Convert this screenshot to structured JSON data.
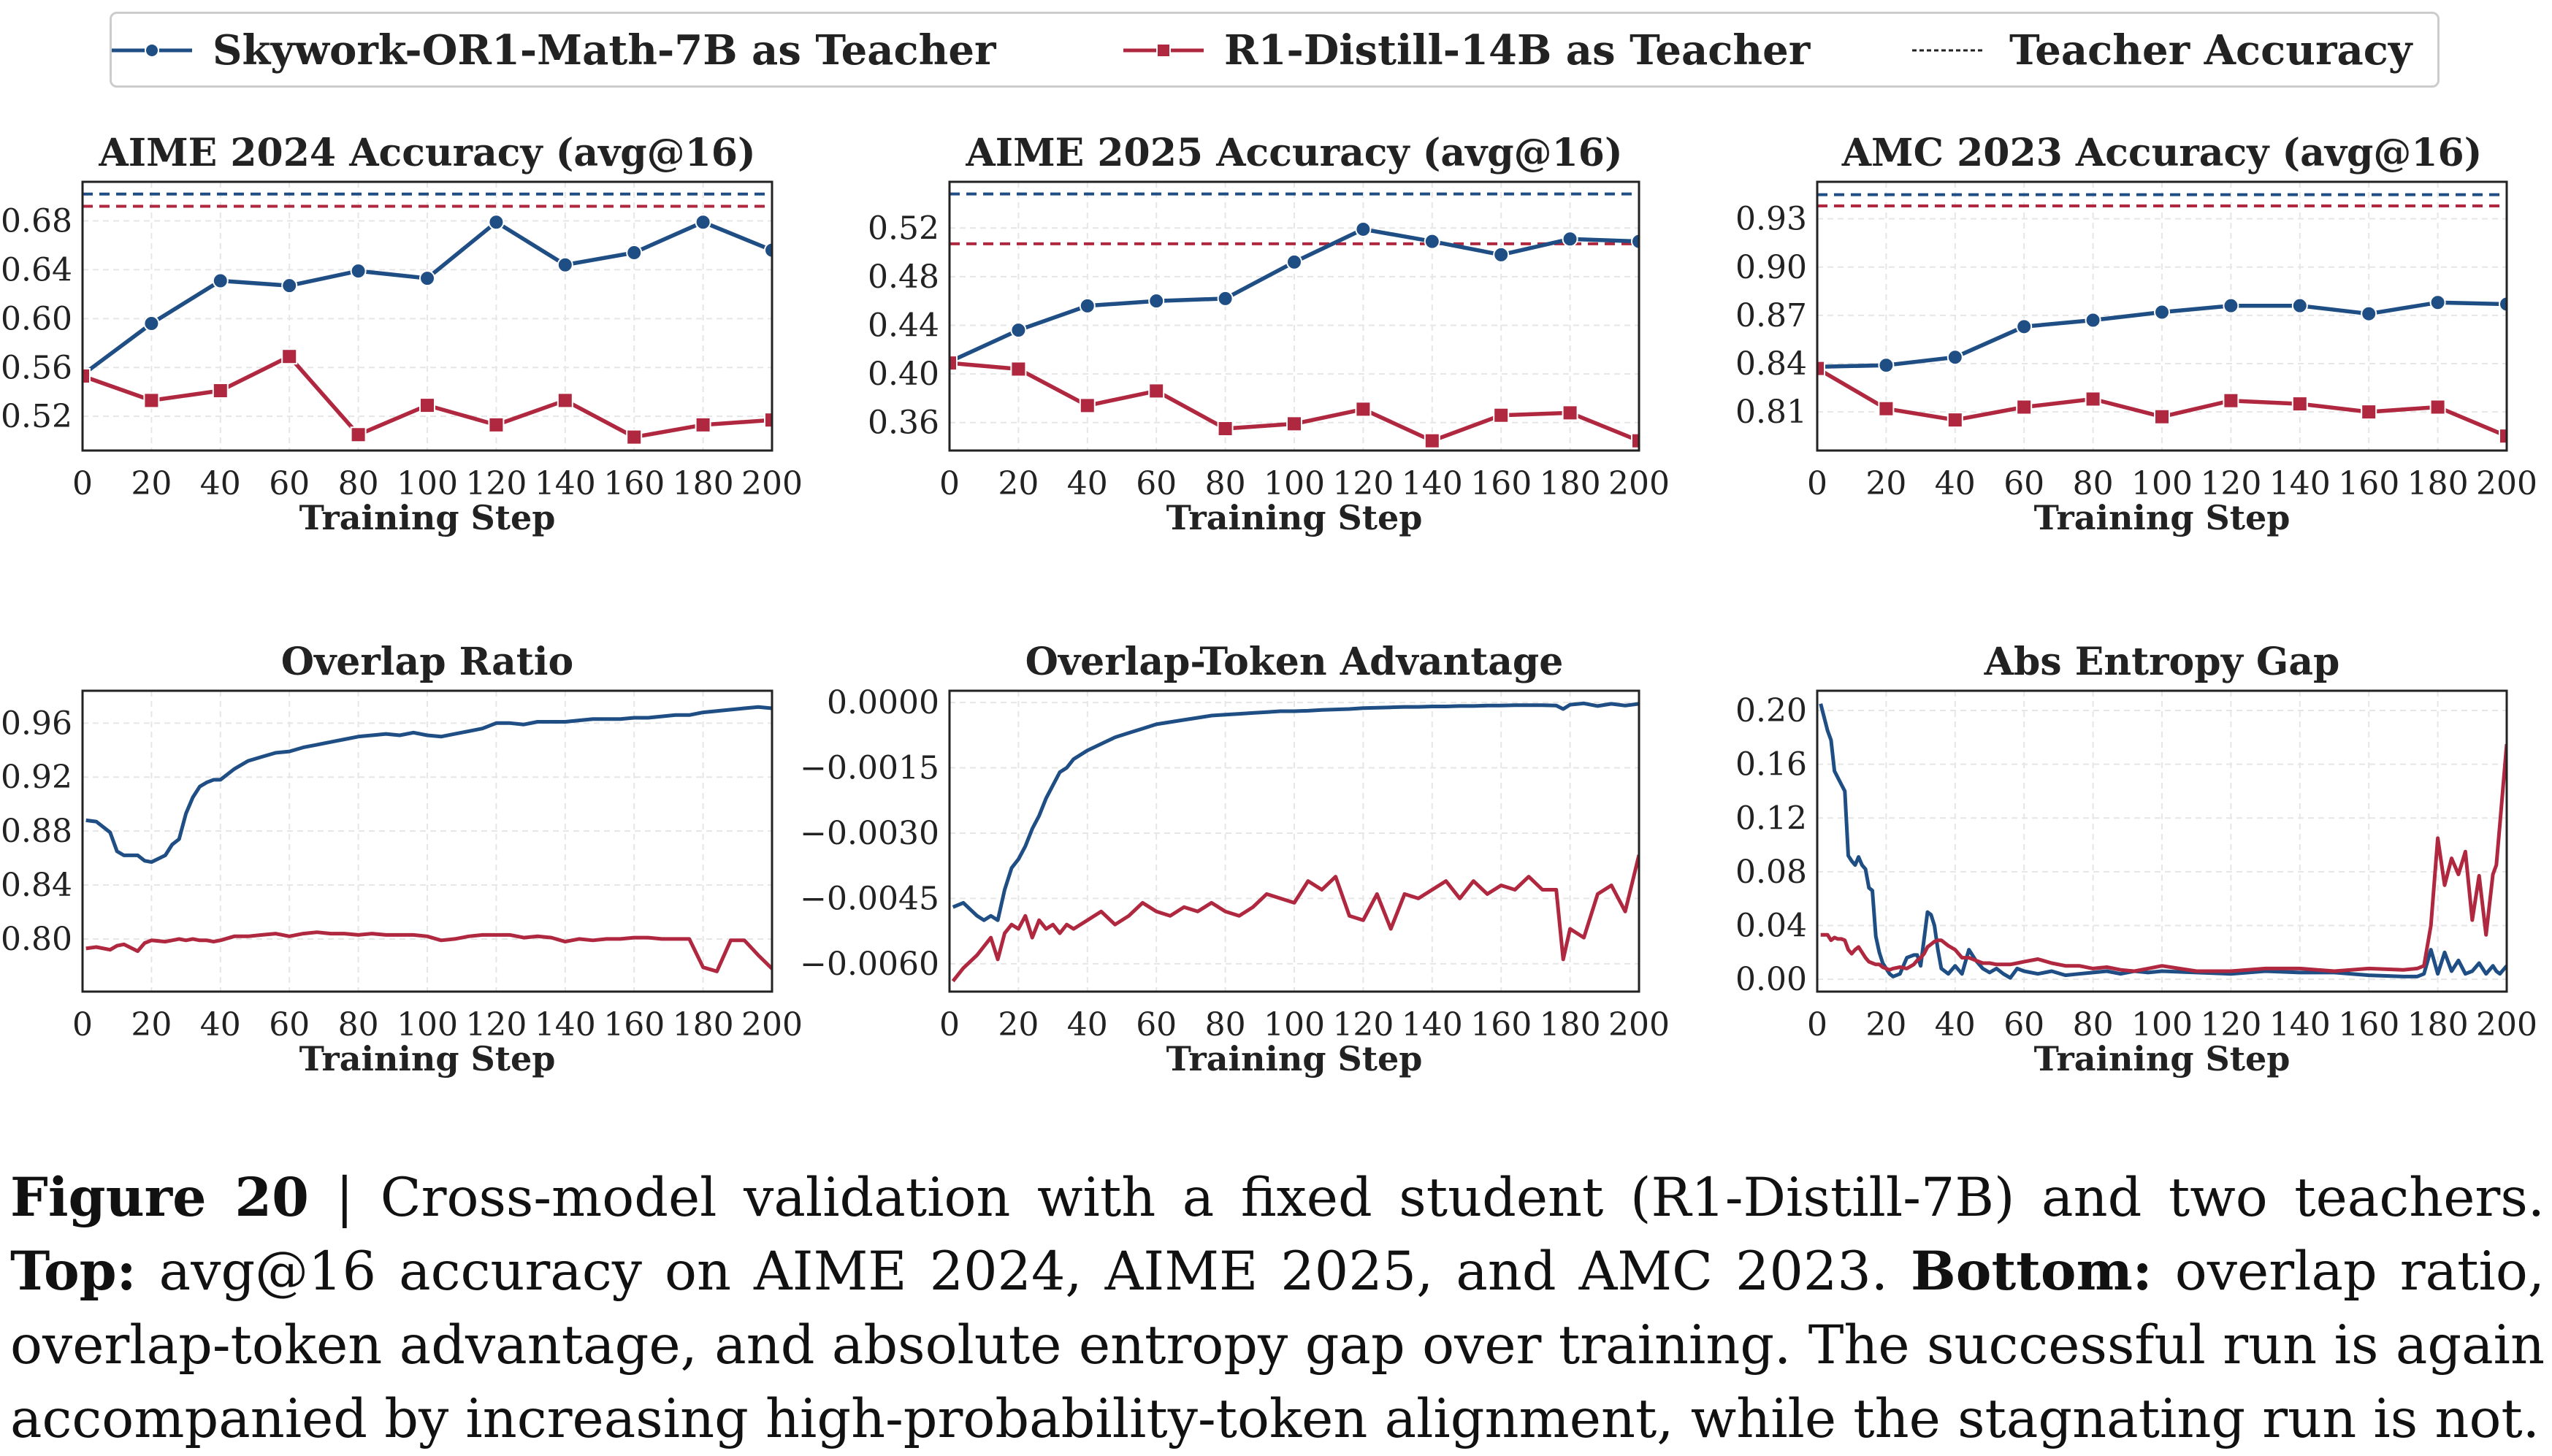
{
  "legend": {
    "items": [
      {
        "label": "Skywork-OR1-Math-7B as Teacher",
        "color": "#1f4e85",
        "marker": "circle",
        "style": "solid"
      },
      {
        "label": "R1-Distill-14B as Teacher",
        "color": "#b0283f",
        "marker": "square",
        "style": "solid"
      },
      {
        "label": "Teacher Accuracy",
        "color": "#222222",
        "marker": "none",
        "style": "dashed"
      }
    ]
  },
  "caption": {
    "fig_label": "Figure 20",
    "separator": " | ",
    "text1": "Cross-model validation with a fixed student (R1-Distill-7B) and two teachers. ",
    "bold_top": "Top:",
    "text2": " avg@16 accuracy on AIME 2024, AIME 2025, and AMC 2023. ",
    "bold_bottom": "Bottom:",
    "text3": " overlap ratio, overlap-token advantage, and absolute entropy gap over training. The successful run is again accompanied by increasing high-probability-token alignment, while the stagnating run is not."
  },
  "colors": {
    "blue": "#1f4e85",
    "red": "#b0283f",
    "grid": "#e6e6e6",
    "axis": "#222222"
  },
  "chart_data": [
    {
      "type": "line",
      "title": "AIME 2024 Accuracy (avg@16)",
      "xlabel": "Training Step",
      "ylabel": "",
      "xlim": [
        0,
        200
      ],
      "ylim": [
        0.492,
        0.712
      ],
      "xticks": [
        0,
        20,
        40,
        60,
        80,
        100,
        120,
        140,
        160,
        180,
        200
      ],
      "yticks": [
        0.52,
        0.56,
        0.6,
        0.64,
        0.68
      ],
      "ytick_labels": [
        "0.52",
        "0.56",
        "0.60",
        "0.64",
        "0.68"
      ],
      "grid": true,
      "x": [
        0,
        20,
        40,
        60,
        80,
        100,
        120,
        140,
        160,
        180,
        200
      ],
      "series": [
        {
          "name": "Skywork-OR1-Math-7B as Teacher",
          "color": "blue",
          "marker": "circle",
          "values": [
            0.554,
            0.596,
            0.631,
            0.627,
            0.639,
            0.633,
            0.679,
            0.644,
            0.654,
            0.679,
            0.656
          ]
        },
        {
          "name": "R1-Distill-14B as Teacher",
          "color": "red",
          "marker": "square",
          "values": [
            0.553,
            0.533,
            0.541,
            0.569,
            0.505,
            0.529,
            0.513,
            0.533,
            0.503,
            0.513,
            0.517
          ]
        }
      ],
      "hlines": [
        {
          "name": "Teacher Accuracy (Skywork-OR1-Math-7B)",
          "color": "blue",
          "value": 0.702
        },
        {
          "name": "Teacher Accuracy (R1-Distill-14B)",
          "color": "red",
          "value": 0.692
        }
      ]
    },
    {
      "type": "line",
      "title": "AIME 2025 Accuracy (avg@16)",
      "xlabel": "Training Step",
      "ylabel": "",
      "xlim": [
        0,
        200
      ],
      "ylim": [
        0.337,
        0.558
      ],
      "xticks": [
        0,
        20,
        40,
        60,
        80,
        100,
        120,
        140,
        160,
        180,
        200
      ],
      "yticks": [
        0.36,
        0.4,
        0.44,
        0.48,
        0.52
      ],
      "ytick_labels": [
        "0.36",
        "0.40",
        "0.44",
        "0.48",
        "0.52"
      ],
      "grid": true,
      "x": [
        0,
        20,
        40,
        60,
        80,
        100,
        120,
        140,
        160,
        180,
        200
      ],
      "series": [
        {
          "name": "Skywork-OR1-Math-7B as Teacher",
          "color": "blue",
          "marker": "circle",
          "values": [
            0.41,
            0.436,
            0.456,
            0.46,
            0.462,
            0.492,
            0.519,
            0.509,
            0.498,
            0.511,
            0.509
          ]
        },
        {
          "name": "R1-Distill-14B as Teacher",
          "color": "red",
          "marker": "square",
          "values": [
            0.409,
            0.404,
            0.374,
            0.386,
            0.355,
            0.359,
            0.371,
            0.345,
            0.366,
            0.368,
            0.345
          ]
        }
      ],
      "hlines": [
        {
          "name": "Teacher Accuracy (Skywork-OR1-Math-7B)",
          "color": "blue",
          "value": 0.548
        },
        {
          "name": "Teacher Accuracy (R1-Distill-14B)",
          "color": "red",
          "value": 0.507
        }
      ]
    },
    {
      "type": "line",
      "title": "AMC 2023 Accuracy (avg@16)",
      "xlabel": "Training Step",
      "ylabel": "",
      "xlim": [
        0,
        200
      ],
      "ylim": [
        0.786,
        0.953
      ],
      "xticks": [
        0,
        20,
        40,
        60,
        80,
        100,
        120,
        140,
        160,
        180,
        200
      ],
      "yticks": [
        0.81,
        0.84,
        0.87,
        0.9,
        0.93
      ],
      "ytick_labels": [
        "0.81",
        "0.84",
        "0.87",
        "0.90",
        "0.93"
      ],
      "grid": true,
      "x": [
        0,
        20,
        40,
        60,
        80,
        100,
        120,
        140,
        160,
        180,
        200
      ],
      "series": [
        {
          "name": "Skywork-OR1-Math-7B as Teacher",
          "color": "blue",
          "marker": "circle",
          "values": [
            0.838,
            0.839,
            0.844,
            0.863,
            0.867,
            0.872,
            0.876,
            0.876,
            0.871,
            0.878,
            0.877
          ]
        },
        {
          "name": "R1-Distill-14B as Teacher",
          "color": "red",
          "marker": "square",
          "values": [
            0.837,
            0.812,
            0.805,
            0.813,
            0.818,
            0.807,
            0.817,
            0.815,
            0.81,
            0.813,
            0.795
          ]
        }
      ],
      "hlines": [
        {
          "name": "Teacher Accuracy (Skywork-OR1-Math-7B)",
          "color": "blue",
          "value": 0.945
        },
        {
          "name": "Teacher Accuracy (R1-Distill-14B)",
          "color": "red",
          "value": 0.938
        }
      ]
    },
    {
      "type": "line",
      "title": "Overlap Ratio",
      "xlabel": "Training Step",
      "ylabel": "",
      "xlim": [
        0,
        200
      ],
      "ylim": [
        0.761,
        0.984
      ],
      "xticks": [
        0,
        20,
        40,
        60,
        80,
        100,
        120,
        140,
        160,
        180,
        200
      ],
      "yticks": [
        0.8,
        0.84,
        0.88,
        0.92,
        0.96
      ],
      "ytick_labels": [
        "0.80",
        "0.84",
        "0.88",
        "0.92",
        "0.96"
      ],
      "grid": true,
      "x": [
        1,
        4,
        8,
        10,
        12,
        16,
        18,
        20,
        24,
        26,
        28,
        30,
        32,
        34,
        36,
        38,
        40,
        44,
        48,
        52,
        56,
        60,
        64,
        68,
        72,
        76,
        80,
        84,
        88,
        92,
        96,
        100,
        104,
        108,
        112,
        116,
        120,
        124,
        128,
        132,
        136,
        140,
        144,
        148,
        152,
        156,
        160,
        164,
        168,
        172,
        176,
        180,
        184,
        188,
        192,
        196,
        200
      ],
      "series": [
        {
          "name": "Skywork-OR1-Math-7B as Teacher",
          "color": "blue",
          "marker": "none",
          "values": [
            0.888,
            0.887,
            0.879,
            0.865,
            0.862,
            0.862,
            0.858,
            0.857,
            0.862,
            0.87,
            0.874,
            0.893,
            0.905,
            0.913,
            0.916,
            0.918,
            0.918,
            0.926,
            0.932,
            0.935,
            0.938,
            0.939,
            0.942,
            0.944,
            0.946,
            0.948,
            0.95,
            0.951,
            0.952,
            0.951,
            0.953,
            0.951,
            0.95,
            0.952,
            0.954,
            0.956,
            0.96,
            0.96,
            0.959,
            0.961,
            0.961,
            0.961,
            0.962,
            0.963,
            0.963,
            0.963,
            0.964,
            0.964,
            0.965,
            0.966,
            0.966,
            0.968,
            0.969,
            0.97,
            0.971,
            0.972,
            0.971
          ]
        },
        {
          "name": "R1-Distill-14B as Teacher",
          "color": "red",
          "marker": "none",
          "values": [
            0.793,
            0.794,
            0.792,
            0.795,
            0.796,
            0.791,
            0.797,
            0.799,
            0.798,
            0.799,
            0.8,
            0.799,
            0.8,
            0.799,
            0.799,
            0.798,
            0.799,
            0.802,
            0.802,
            0.803,
            0.804,
            0.802,
            0.804,
            0.805,
            0.804,
            0.804,
            0.803,
            0.804,
            0.803,
            0.803,
            0.803,
            0.802,
            0.799,
            0.8,
            0.802,
            0.803,
            0.803,
            0.803,
            0.801,
            0.802,
            0.801,
            0.798,
            0.8,
            0.799,
            0.8,
            0.8,
            0.801,
            0.801,
            0.8,
            0.8,
            0.8,
            0.779,
            0.776,
            0.799,
            0.799,
            0.788,
            0.778
          ]
        }
      ]
    },
    {
      "type": "line",
      "title": "Overlap-Token Advantage",
      "xlabel": "Training Step",
      "ylabel": "",
      "xlim": [
        0,
        200
      ],
      "ylim": [
        -0.00664,
        0.00027
      ],
      "xticks": [
        0,
        20,
        40,
        60,
        80,
        100,
        120,
        140,
        160,
        180,
        200
      ],
      "yticks": [
        0.0,
        -0.0015,
        -0.003,
        -0.0045,
        -0.006
      ],
      "ytick_labels": [
        "0.0000",
        "−0.0015",
        "−0.0030",
        "−0.0045",
        "−0.0060"
      ],
      "grid": true,
      "x": [
        1,
        4,
        8,
        10,
        12,
        14,
        16,
        18,
        20,
        22,
        24,
        26,
        28,
        30,
        32,
        34,
        36,
        40,
        44,
        48,
        52,
        56,
        60,
        64,
        68,
        72,
        76,
        80,
        84,
        88,
        92,
        96,
        100,
        104,
        108,
        112,
        116,
        120,
        124,
        128,
        132,
        136,
        140,
        144,
        148,
        152,
        156,
        160,
        164,
        168,
        172,
        176,
        178,
        180,
        184,
        188,
        192,
        196,
        200
      ],
      "series": [
        {
          "name": "Skywork-OR1-Math-7B as Teacher",
          "color": "blue",
          "marker": "none",
          "values": [
            -0.0047,
            -0.0046,
            -0.0049,
            -0.005,
            -0.0049,
            -0.005,
            -0.0043,
            -0.0038,
            -0.0036,
            -0.0033,
            -0.0029,
            -0.0026,
            -0.0022,
            -0.0019,
            -0.0016,
            -0.0015,
            -0.0013,
            -0.0011,
            -0.00095,
            -0.0008,
            -0.0007,
            -0.0006,
            -0.0005,
            -0.00045,
            -0.0004,
            -0.00035,
            -0.0003,
            -0.00028,
            -0.00026,
            -0.00024,
            -0.00022,
            -0.0002,
            -0.0002,
            -0.00019,
            -0.00017,
            -0.00016,
            -0.00015,
            -0.00013,
            -0.00012,
            -0.00011,
            -0.0001,
            -0.0001,
            -9e-05,
            -9e-05,
            -8e-05,
            -8e-05,
            -7e-05,
            -7e-05,
            -6e-05,
            -6e-05,
            -6e-05,
            -7e-05,
            -0.00015,
            -5e-05,
            -2e-05,
            -8e-05,
            -3e-05,
            -7e-05,
            -3e-05
          ]
        },
        {
          "name": "R1-Distill-14B as Teacher",
          "color": "red",
          "marker": "none",
          "values": [
            -0.0064,
            -0.0061,
            -0.0058,
            -0.0056,
            -0.0054,
            -0.0059,
            -0.0053,
            -0.0051,
            -0.0052,
            -0.0049,
            -0.0054,
            -0.005,
            -0.0052,
            -0.0051,
            -0.0053,
            -0.0051,
            -0.0052,
            -0.005,
            -0.0048,
            -0.0051,
            -0.0049,
            -0.0046,
            -0.0048,
            -0.0049,
            -0.0047,
            -0.0048,
            -0.0046,
            -0.0048,
            -0.0049,
            -0.0047,
            -0.0044,
            -0.0045,
            -0.0046,
            -0.0041,
            -0.0043,
            -0.004,
            -0.0049,
            -0.005,
            -0.0044,
            -0.0052,
            -0.0044,
            -0.0045,
            -0.0043,
            -0.0041,
            -0.0045,
            -0.0041,
            -0.0044,
            -0.0042,
            -0.0043,
            -0.004,
            -0.0043,
            -0.0043,
            -0.0059,
            -0.0052,
            -0.0054,
            -0.0044,
            -0.0042,
            -0.0048,
            -0.0035
          ]
        }
      ]
    },
    {
      "type": "line",
      "title": "Abs Entropy Gap",
      "xlabel": "Training Step",
      "ylabel": "",
      "xlim": [
        0,
        200
      ],
      "ylim": [
        -0.0092,
        0.2147
      ],
      "xticks": [
        0,
        20,
        40,
        60,
        80,
        100,
        120,
        140,
        160,
        180,
        200
      ],
      "yticks": [
        0.0,
        0.04,
        0.08,
        0.12,
        0.16,
        0.2
      ],
      "ytick_labels": [
        "0.00",
        "0.04",
        "0.08",
        "0.12",
        "0.16",
        "0.20"
      ],
      "grid": true,
      "x": [
        1,
        3,
        4,
        5,
        6,
        7,
        8,
        9,
        10,
        11,
        12,
        13,
        14,
        15,
        16,
        17,
        18,
        19,
        20,
        21,
        22,
        24,
        26,
        28,
        29,
        30,
        31,
        32,
        33,
        34,
        35,
        36,
        38,
        40,
        42,
        44,
        46,
        48,
        50,
        52,
        54,
        56,
        58,
        60,
        64,
        68,
        72,
        76,
        80,
        84,
        88,
        92,
        96,
        100,
        110,
        120,
        130,
        140,
        150,
        160,
        170,
        174,
        176,
        178,
        180,
        182,
        184,
        186,
        188,
        190,
        192,
        194,
        196,
        197,
        198,
        200
      ],
      "series": [
        {
          "name": "Skywork-OR1-Math-7B as Teacher",
          "color": "blue",
          "marker": "none",
          "values": [
            0.205,
            0.185,
            0.178,
            0.155,
            0.15,
            0.145,
            0.14,
            0.092,
            0.088,
            0.085,
            0.091,
            0.085,
            0.082,
            0.068,
            0.066,
            0.032,
            0.02,
            0.012,
            0.008,
            0.004,
            0.002,
            0.004,
            0.016,
            0.018,
            0.018,
            0.01,
            0.03,
            0.05,
            0.048,
            0.04,
            0.022,
            0.008,
            0.004,
            0.01,
            0.004,
            0.022,
            0.014,
            0.008,
            0.005,
            0.008,
            0.004,
            0.001,
            0.008,
            0.006,
            0.004,
            0.006,
            0.003,
            0.004,
            0.005,
            0.006,
            0.004,
            0.006,
            0.005,
            0.006,
            0.005,
            0.004,
            0.006,
            0.005,
            0.005,
            0.003,
            0.002,
            0.002,
            0.004,
            0.022,
            0.004,
            0.02,
            0.006,
            0.014,
            0.004,
            0.006,
            0.012,
            0.004,
            0.01,
            0.006,
            0.004,
            0.01
          ]
        },
        {
          "name": "R1-Distill-14B as Teacher",
          "color": "red",
          "marker": "none",
          "values": [
            0.033,
            0.033,
            0.029,
            0.031,
            0.03,
            0.03,
            0.029,
            0.022,
            0.019,
            0.022,
            0.024,
            0.02,
            0.016,
            0.013,
            0.012,
            0.011,
            0.011,
            0.009,
            0.008,
            0.007,
            0.008,
            0.009,
            0.008,
            0.011,
            0.014,
            0.016,
            0.019,
            0.024,
            0.026,
            0.028,
            0.029,
            0.029,
            0.025,
            0.022,
            0.016,
            0.016,
            0.014,
            0.012,
            0.012,
            0.011,
            0.011,
            0.011,
            0.012,
            0.013,
            0.015,
            0.012,
            0.01,
            0.01,
            0.008,
            0.009,
            0.007,
            0.006,
            0.008,
            0.01,
            0.006,
            0.006,
            0.008,
            0.008,
            0.006,
            0.008,
            0.007,
            0.008,
            0.01,
            0.04,
            0.105,
            0.07,
            0.09,
            0.078,
            0.095,
            0.044,
            0.077,
            0.033,
            0.078,
            0.085,
            0.115,
            0.175
          ]
        }
      ]
    }
  ]
}
